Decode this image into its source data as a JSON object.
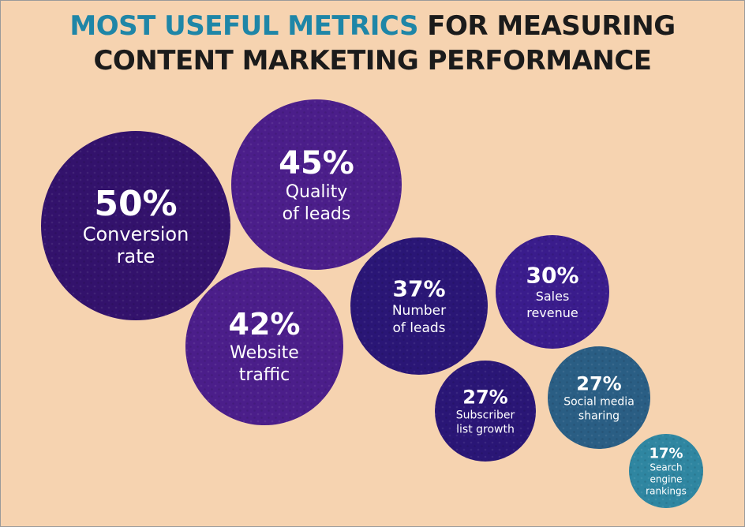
{
  "title": {
    "highlight": "MOST USEFUL METRICS",
    "rest_line1": " FOR MEASURING",
    "line2": "CONTENT MARKETING PERFORMANCE"
  },
  "colors": {
    "background": "#f6d3b0",
    "highlight": "#1f86a7",
    "title_text": "#1b1b1b",
    "bubble_purple": "#33126c",
    "bubble_violet": "#4b1e8a",
    "bubble_indigo": "#2a1676",
    "bubble_blue_violet": "#3a1c8c",
    "bubble_teal": "#2a5e84",
    "bubble_light_teal": "#2f86a1"
  },
  "chart_data": {
    "type": "bubble",
    "title": "MOST USEFUL METRICS FOR MEASURING CONTENT MARKETING PERFORMANCE",
    "unit": "%",
    "items": [
      {
        "metric": "Conversion rate",
        "label_lines": [
          "Conversion",
          "rate"
        ],
        "value": 50,
        "value_label": "50%"
      },
      {
        "metric": "Quality of leads",
        "label_lines": [
          "Quality",
          "of leads"
        ],
        "value": 45,
        "value_label": "45%"
      },
      {
        "metric": "Website traffic",
        "label_lines": [
          "Website",
          "traffic"
        ],
        "value": 42,
        "value_label": "42%"
      },
      {
        "metric": "Number of leads",
        "label_lines": [
          "Number",
          "of leads"
        ],
        "value": 37,
        "value_label": "37%"
      },
      {
        "metric": "Sales revenue",
        "label_lines": [
          "Sales",
          "revenue"
        ],
        "value": 30,
        "value_label": "30%"
      },
      {
        "metric": "Subscriber list growth",
        "label_lines": [
          "Subscriber",
          "list growth"
        ],
        "value": 27,
        "value_label": "27%"
      },
      {
        "metric": "Social media sharing",
        "label_lines": [
          "Social media",
          "sharing"
        ],
        "value": 27,
        "value_label": "27%"
      },
      {
        "metric": "Search engine rankings",
        "label_lines": [
          "Search",
          "engine",
          "rankings"
        ],
        "value": 17,
        "value_label": "17%"
      }
    ]
  }
}
